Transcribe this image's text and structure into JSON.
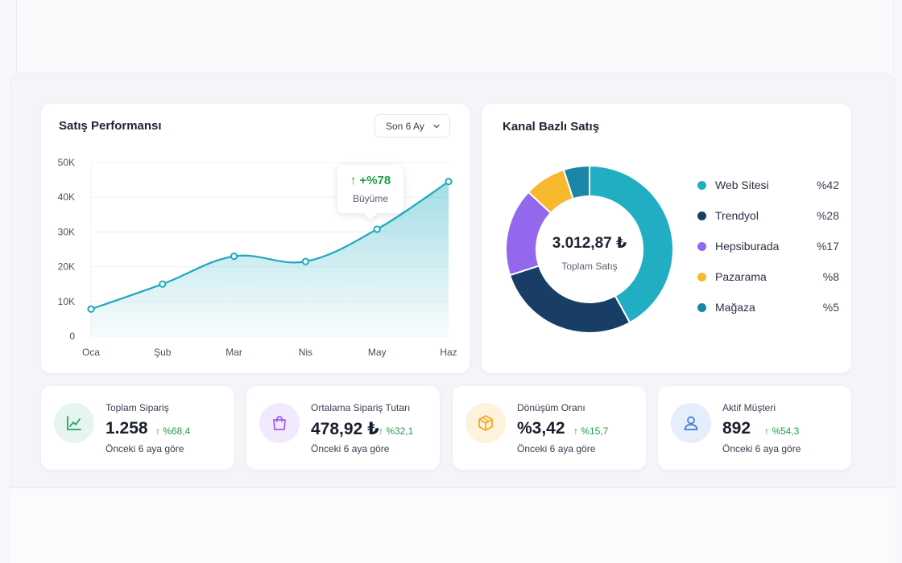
{
  "sales_card": {
    "title": "Satış Performansı",
    "period_dropdown": "Son 6 Ay",
    "tooltip": {
      "value": "↑ +%78",
      "label": "Büyüme"
    }
  },
  "chart_data": [
    {
      "type": "area",
      "categories": [
        "Oca",
        "Şub",
        "Mar",
        "Nis",
        "May",
        "Haz"
      ],
      "values": [
        7800,
        15000,
        23000,
        21500,
        30800,
        44500
      ],
      "y_ticks": [
        "0",
        "10K",
        "20K",
        "30K",
        "40K",
        "50K"
      ],
      "ylim": [
        0,
        50000
      ],
      "grid": true,
      "color": "#20a8bd"
    },
    {
      "type": "pie",
      "labels": [
        "Web Sitesi",
        "Trendyol",
        "Hepsiburada",
        "Pazarama",
        "Mağaza"
      ],
      "values": [
        42,
        28,
        17,
        8,
        5
      ],
      "percent_labels": [
        "%42",
        "%28",
        "%17",
        "%8",
        "%5"
      ],
      "colors": [
        "#22aec2",
        "#183e66",
        "#9468ec",
        "#f6b92d",
        "#1b86a5"
      ],
      "center_value": "3.012,87 ₺",
      "center_label": "Toplam Satış"
    }
  ],
  "channel_card": {
    "title": "Kanal Bazlı Satış"
  },
  "stats": [
    {
      "label": "Toplam Sipariş",
      "value": "1.258",
      "change": "↑ %68,4",
      "sub": "Önceki 6 aya göre",
      "icon": "chart-line-icon",
      "icon_color": "#22a36a",
      "icon_bg": "#e6f6ee"
    },
    {
      "label": "Ortalama Sipariş Tutarı",
      "value": "478,92 ₺",
      "change": "↑ %32,1",
      "sub": "Önceki 6 aya göre",
      "icon": "shopping-bag-icon",
      "icon_color": "#9b5de5",
      "icon_bg": "#f1eafc"
    },
    {
      "label": "Dönüşüm Oranı",
      "value": "%3,42",
      "change": "↑ %15,7",
      "sub": "Önceki 6 aya göre",
      "icon": "box-icon",
      "icon_color": "#f2a81d",
      "icon_bg": "#fdf2dc"
    },
    {
      "label": "Aktif Müşteri",
      "value": "892",
      "change": "↑ %54,3",
      "sub": "Önceki 6 aya göre",
      "icon": "user-icon",
      "icon_color": "#3a7bd5",
      "icon_bg": "#e6eefb"
    }
  ]
}
